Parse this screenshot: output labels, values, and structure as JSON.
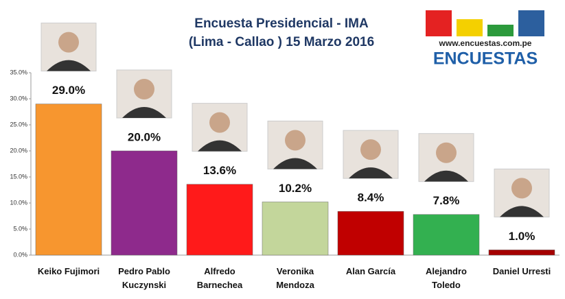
{
  "chart_data": {
    "type": "bar",
    "title": "Encuesta Presidencial - IMA",
    "subtitle": "(Lima - Callao ) 15 Marzo 2016",
    "logo_url": "www.encuestas.com.pe",
    "logo_name": "ENCUESTAS",
    "categories": [
      "Keiko Fujimori",
      "Pedro Pablo Kuczynski",
      "Alfredo Barnechea",
      "Veronika Mendoza",
      "Alan García",
      "Alejandro Toledo",
      "Daniel Urresti"
    ],
    "values": [
      29.0,
      20.0,
      13.6,
      10.2,
      8.4,
      7.8,
      1.0
    ],
    "value_labels": [
      "29.0%",
      "20.0%",
      "13.6%",
      "10.2%",
      "8.4%",
      "7.8%",
      "1.0%"
    ],
    "colors": [
      "#f7962f",
      "#8e2a8c",
      "#ff1a1a",
      "#c3d69b",
      "#c00000",
      "#33b050",
      "#a50000"
    ],
    "ylim": [
      0,
      35
    ],
    "yticks": [
      {
        "value": 0,
        "label": "0.0%"
      },
      {
        "value": 5,
        "label": "5.0%"
      },
      {
        "value": 10,
        "label": "10.0%"
      },
      {
        "value": 15,
        "label": "15.0%"
      },
      {
        "value": 20,
        "label": "20.0%"
      },
      {
        "value": 25,
        "label": "25.0%"
      },
      {
        "value": 30,
        "label": "30.0%"
      },
      {
        "value": 35,
        "label": "35.0%"
      }
    ],
    "grid": false
  }
}
